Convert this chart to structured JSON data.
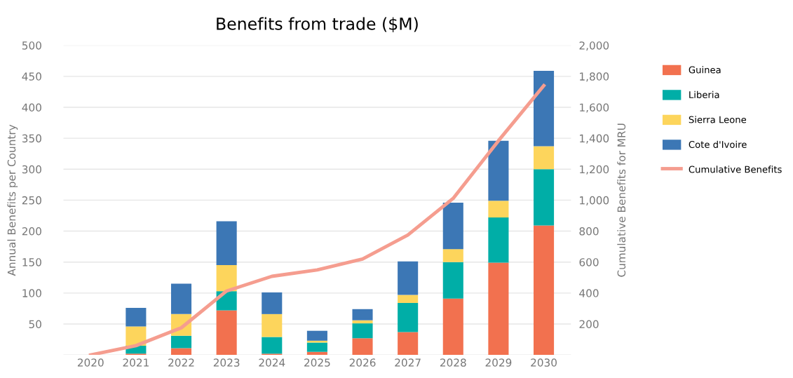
{
  "chart_data": {
    "type": "bar",
    "stacked": true,
    "title": "Benefits from trade ($M)",
    "ylabel": "Annual Benefits per Country",
    "y2label": "Cumulative Benefits for MRU",
    "categories": [
      "2020",
      "2021",
      "2022",
      "2023",
      "2024",
      "2025",
      "2026",
      "2027",
      "2028",
      "2029",
      "2030"
    ],
    "series": [
      {
        "name": "Guinea",
        "color": "#f2714f",
        "values": [
          0,
          2,
          11,
          72,
          2,
          5,
          27,
          37,
          91,
          149,
          209
        ]
      },
      {
        "name": "Liberia",
        "color": "#00aea7",
        "values": [
          0,
          13,
          20,
          31,
          27,
          15,
          24,
          47,
          59,
          73,
          91
        ]
      },
      {
        "name": "Sierra Leone",
        "color": "#fdd55c",
        "values": [
          0,
          31,
          35,
          42,
          37,
          3,
          5,
          13,
          21,
          27,
          37
        ]
      },
      {
        "name": "Cote d'Ivoire",
        "color": "#3c77b5",
        "values": [
          0,
          30,
          49,
          71,
          35,
          16,
          18,
          54,
          75,
          97,
          122
        ]
      },
      {
        "name": "Cumulative Benefits",
        "type": "line",
        "axis": "y2",
        "color": "#f59d8f",
        "values": [
          0,
          60,
          175,
          413,
          508,
          549,
          620,
          775,
          1011,
          1384,
          1740
        ]
      }
    ],
    "ylim": [
      0,
      500
    ],
    "yticks": [
      {
        "value": 0,
        "label": null
      },
      50,
      100,
      150,
      200,
      250,
      300,
      350,
      400,
      450,
      500
    ],
    "y2lim": [
      0,
      2000
    ],
    "y2ticks": [
      {
        "value": 0,
        "label": null
      },
      {
        "value": 200,
        "label": "200"
      },
      {
        "value": 400,
        "label": "400"
      },
      {
        "value": 600,
        "label": "600"
      },
      {
        "value": 800,
        "label": "800"
      },
      {
        "value": 1000,
        "label": "1,000"
      },
      {
        "value": 1200,
        "label": "1,200"
      },
      {
        "value": 1400,
        "label": "1,400"
      },
      {
        "value": 1600,
        "label": "1,600"
      },
      {
        "value": 1800,
        "label": "1,800"
      },
      {
        "value": 2000,
        "label": "2,000"
      }
    ],
    "grid": "y",
    "legend": "right",
    "marker": "none",
    "line_style": "solid"
  }
}
